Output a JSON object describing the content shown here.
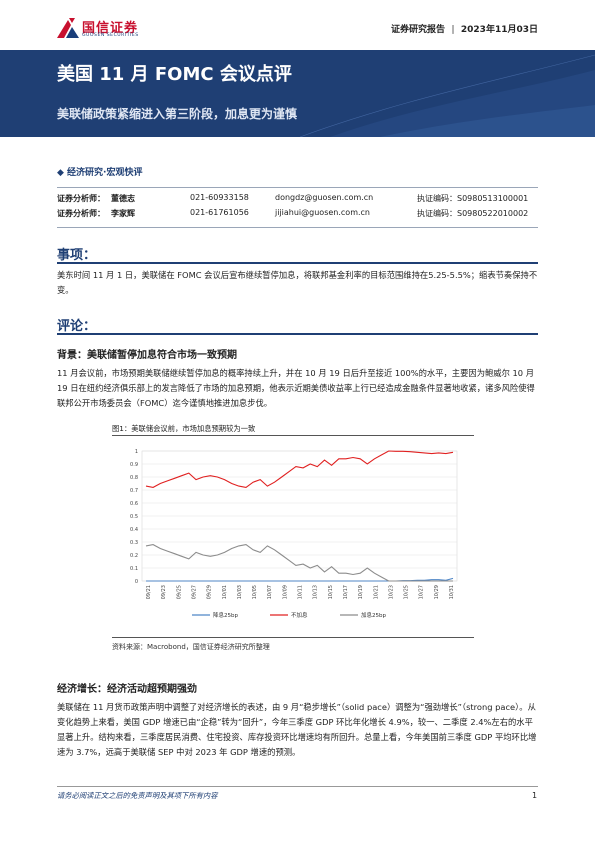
{
  "header": {
    "logo_cn": "国信证券",
    "logo_en": "GUOSEN SECURITIES",
    "report_type": "证券研究报告",
    "date": "2023年11月03日",
    "brand_colors": {
      "red": "#c8102e",
      "navy": "#1f3f74"
    }
  },
  "banner": {
    "title": "美国 11 月 FOMC 会议点评",
    "subtitle": "美联储政策紧缩进入第三阶段，加息更为谨慎"
  },
  "category": "◆ 经济研究·宏观快评",
  "analysts": [
    {
      "role": "证券分析师：",
      "name": "董德志",
      "phone": "021-60933158",
      "email": "dongdz@guosen.com.cn",
      "cert": "执证编码：S0980513100001"
    },
    {
      "role": "证券分析师：",
      "name": "李家辉",
      "phone": "021-61761056",
      "email": "jijiahui@guosen.com.cn",
      "cert": "执证编码：S0980522010002"
    }
  ],
  "sections": {
    "matter_title": "事项：",
    "matter_text": "美东时间 11 月 1 日，美联储在 FOMC 会议后宣布继续暂停加息，将联邦基金利率的目标范围维持在5.25-5.5%；缩表节奏保持不变。",
    "comment_title": "评论：",
    "bg_title": "背景：美联储暂停加息符合市场一致预期",
    "bg_text": "11 月会议前，市场预期美联储继续暂停加息的概率持续上升，并在 10 月 19 日后升至接近 100%的水平，主要因为鲍威尔 10 月 19 日在纽约经济俱乐部上的发言降低了市场的加息预期，他表示近期美债收益率上行已经造成金融条件显著地收紧，诸多风险使得联邦公开市场委员会（FOMC）迄今谨慎地推进加息步伐。",
    "fig_title": "图1：美联储会议前，市场加息预期较为一致",
    "fig_source": "资料来源：Macrobond，国信证券经济研究所整理",
    "growth_title": "经济增长：经济活动超预期强劲",
    "growth_text": "美联储在 11 月货币政策声明中调整了对经济增长的表述，由 9 月“稳步增长”（solid pace）调整为“强劲增长”（strong pace）。从变化趋势上来看，美国 GDP 增速已由“企稳”转为“回升”，今年三季度 GDP 环比年化增长 4.9%，较一、二季度 2.4%左右的水平显著上升。结构来看，三季度居民消费、住宅投资、库存投资环比增速均有所回升。总量上看，今年美国前三季度 GDP 平均环比增速为 3.7%，远高于美联储 SEP 中对 2023 年 GDP 增速的预测。"
  },
  "chart_data": {
    "type": "line",
    "ylim": [
      0,
      1
    ],
    "yticks": [
      "0",
      "0.1",
      "0.2",
      "0.3",
      "0.4",
      "0.5",
      "0.6",
      "0.7",
      "0.8",
      "0.9",
      "1"
    ],
    "xticks": [
      "09/21",
      "09/23",
      "09/25",
      "09/27",
      "09/29",
      "10/01",
      "10/03",
      "10/05",
      "10/07",
      "10/09",
      "10/11",
      "10/13",
      "10/15",
      "10/17",
      "10/19",
      "10/21",
      "10/23",
      "10/25",
      "10/27",
      "10/29",
      "10/31"
    ],
    "grid": true,
    "legend_position": "bottom",
    "series": [
      {
        "name": "降息25bp",
        "color": "#4f86c6",
        "values": [
          0,
          0,
          0,
          0,
          0,
          0,
          0,
          0,
          0,
          0,
          0,
          0,
          0,
          0,
          0,
          0,
          0,
          0,
          0,
          0,
          0,
          0,
          0,
          0,
          0,
          0,
          0,
          0,
          0,
          0,
          0,
          0,
          0,
          0,
          0,
          0,
          0.002,
          0.002,
          0.005,
          0.005,
          0.01,
          0.01,
          0.005,
          0.02
        ]
      },
      {
        "name": "不加息",
        "color": "#e02020",
        "values": [
          0.73,
          0.72,
          0.75,
          0.77,
          0.79,
          0.81,
          0.83,
          0.78,
          0.8,
          0.81,
          0.8,
          0.78,
          0.75,
          0.73,
          0.72,
          0.76,
          0.78,
          0.73,
          0.76,
          0.8,
          0.84,
          0.88,
          0.87,
          0.9,
          0.88,
          0.93,
          0.89,
          0.94,
          0.94,
          0.95,
          0.94,
          0.9,
          0.94,
          0.97,
          1.0,
          0.998,
          0.998,
          0.995,
          0.99,
          0.985,
          0.98,
          0.985,
          0.98,
          0.99
        ]
      },
      {
        "name": "加息25bp",
        "color": "#8c8c8c",
        "values": [
          0.27,
          0.28,
          0.25,
          0.23,
          0.21,
          0.19,
          0.17,
          0.22,
          0.2,
          0.19,
          0.2,
          0.22,
          0.25,
          0.27,
          0.28,
          0.24,
          0.22,
          0.27,
          0.24,
          0.2,
          0.16,
          0.12,
          0.13,
          0.1,
          0.12,
          0.07,
          0.11,
          0.06,
          0.06,
          0.05,
          0.06,
          0.1,
          0.06,
          0.03,
          0,
          0,
          0,
          0,
          0,
          0,
          0,
          0,
          0,
          0
        ]
      }
    ]
  },
  "footer": {
    "disclaimer": "请务必阅读正文之后的免责声明及其项下所有内容",
    "page": "1"
  }
}
